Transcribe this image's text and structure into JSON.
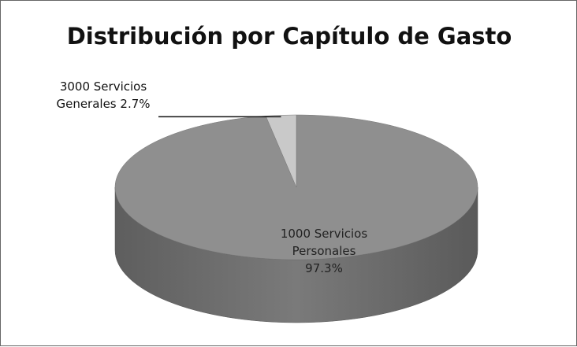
{
  "chart_data": {
    "type": "pie",
    "title": "Distribución por Capítulo de Gasto",
    "categories": [
      "1000 Servicios Personales",
      "3000 Servicios Generales"
    ],
    "values": [
      97.3,
      2.7
    ],
    "value_labels": [
      "97.3%",
      "2.7%"
    ],
    "colors": [
      "#8f8f8f",
      "#c9c9c9"
    ]
  }
}
